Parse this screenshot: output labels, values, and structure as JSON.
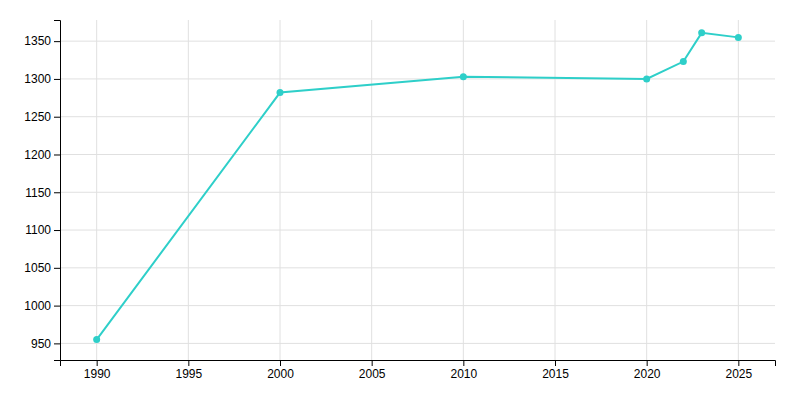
{
  "chart_data": {
    "type": "line",
    "x": [
      1990,
      2000,
      2010,
      2020,
      2022,
      2023,
      2025
    ],
    "values": [
      955,
      1282,
      1303,
      1300,
      1323,
      1361,
      1355
    ],
    "color": "#2ECFC9",
    "marker": "circle",
    "xlim": [
      1988,
      2027
    ],
    "ylim": [
      928,
      1378
    ],
    "xticks": [
      1990,
      1995,
      2000,
      2005,
      2010,
      2015,
      2020,
      2025
    ],
    "yticks": [
      950,
      1000,
      1050,
      1100,
      1150,
      1200,
      1250,
      1300,
      1350
    ],
    "grid": true
  }
}
